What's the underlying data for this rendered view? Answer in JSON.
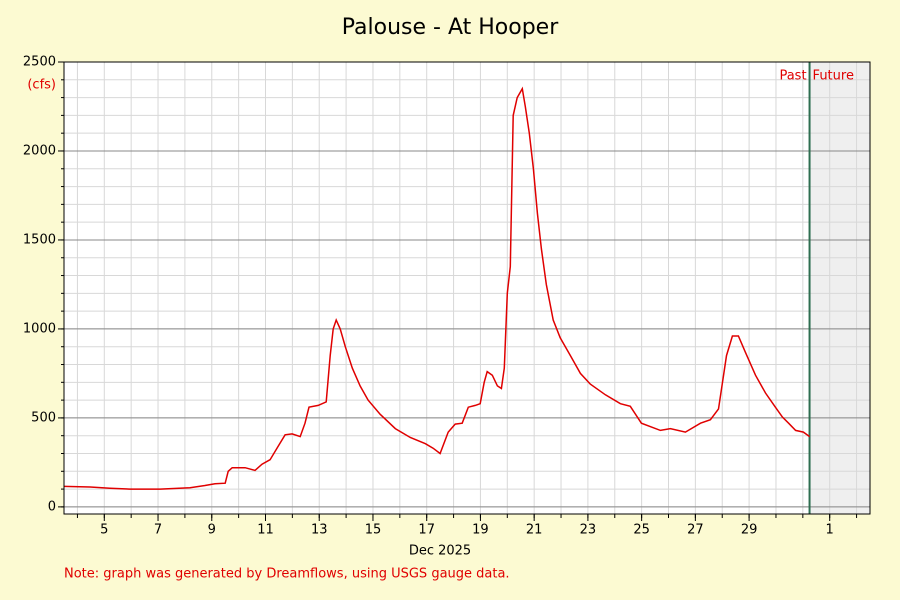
{
  "chart_data": {
    "type": "line",
    "title": "Palouse - At Hooper",
    "y_unit": "(cfs)",
    "x_label": "Dec 2025",
    "note": "Note: graph was generated by Dreamflows, using USGS gauge data.",
    "past_label": "Past",
    "future_label": "Future",
    "now_x": 31.25,
    "xlim": [
      3.5,
      33.5
    ],
    "ylim": [
      -40,
      2500
    ],
    "xticks": [
      5,
      7,
      9,
      11,
      13,
      15,
      17,
      19,
      21,
      23,
      25,
      27,
      29,
      {
        "value": 32,
        "label": "1"
      }
    ],
    "yticks": [
      0,
      500,
      1000,
      1500,
      2000,
      2500
    ],
    "xminor": [
      4,
      5,
      6,
      7,
      8,
      9,
      10,
      11,
      12,
      13,
      14,
      15,
      16,
      17,
      18,
      19,
      20,
      21,
      22,
      23,
      24,
      25,
      26,
      27,
      28,
      29,
      30,
      31,
      32,
      33
    ],
    "yminor": [
      0,
      100,
      200,
      300,
      400,
      500,
      600,
      700,
      800,
      900,
      1000,
      1100,
      1200,
      1300,
      1400,
      1500,
      1600,
      1700,
      1800,
      1900,
      2000,
      2100,
      2200,
      2300,
      2400,
      2500
    ],
    "grid": true,
    "series": [
      {
        "name": "Flow",
        "color": "#e00000",
        "x": [
          3.5,
          4.47,
          5.21,
          5.96,
          7.08,
          8.19,
          8.75,
          9.12,
          9.5,
          9.61,
          9.76,
          10.24,
          10.61,
          10.87,
          11.17,
          11.47,
          11.73,
          11.99,
          12.29,
          12.47,
          12.62,
          12.96,
          13.26,
          13.41,
          13.52,
          13.63,
          13.78,
          13.97,
          14.23,
          14.52,
          14.82,
          15.27,
          15.83,
          16.39,
          16.95,
          17.24,
          17.5,
          17.8,
          18.06,
          18.32,
          18.55,
          18.81,
          18.99,
          19.14,
          19.25,
          19.44,
          19.63,
          19.78,
          19.89,
          20.0,
          20.11,
          20.22,
          20.37,
          20.56,
          20.67,
          20.82,
          20.97,
          21.12,
          21.27,
          21.45,
          21.71,
          21.97,
          22.35,
          22.72,
          23.09,
          23.65,
          24.21,
          24.58,
          24.99,
          25.7,
          26.07,
          26.63,
          27.19,
          27.56,
          27.86,
          28.01,
          28.16,
          28.38,
          28.6,
          28.86,
          29.24,
          29.61,
          29.98,
          30.24,
          30.47,
          30.73,
          31.02,
          31.25
        ],
        "values": [
          115,
          112,
          105,
          100,
          100,
          108,
          120,
          130,
          133,
          200,
          220,
          220,
          205,
          240,
          265,
          340,
          405,
          410,
          395,
          470,
          560,
          570,
          590,
          850,
          1000,
          1050,
          1000,
          900,
          780,
          680,
          600,
          520,
          440,
          390,
          355,
          330,
          300,
          420,
          465,
          470,
          560,
          570,
          580,
          700,
          760,
          740,
          680,
          665,
          780,
          1200,
          1350,
          2200,
          2300,
          2350,
          2250,
          2100,
          1900,
          1650,
          1450,
          1250,
          1050,
          950,
          850,
          750,
          690,
          630,
          580,
          565,
          470,
          430,
          440,
          420,
          470,
          490,
          550,
          700,
          850,
          960,
          960,
          870,
          740,
          640,
          560,
          505,
          470,
          430,
          420,
          395
        ]
      }
    ]
  }
}
